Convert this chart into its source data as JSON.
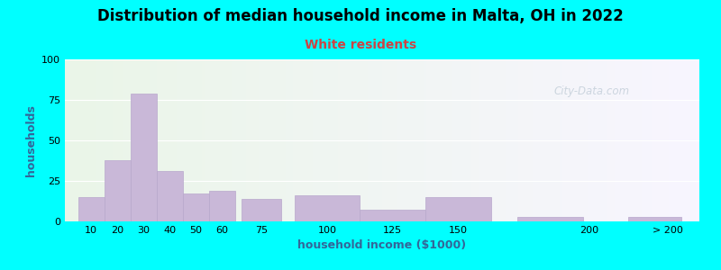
{
  "title": "Distribution of median household income in Malta, OH in 2022",
  "subtitle": "White residents",
  "xlabel": "household income ($1000)",
  "ylabel": "households",
  "background_color": "#00FFFF",
  "plot_bg_left": "#eaf5e8",
  "plot_bg_right": "#f8f5ff",
  "bar_color": "#c9b8d8",
  "bar_edge_color": "#b8a8cc",
  "title_fontsize": 12,
  "subtitle_fontsize": 10,
  "subtitle_color": "#cc4444",
  "ylabel_color": "#336699",
  "xlabel_color": "#336699",
  "ylim": [
    0,
    100
  ],
  "yticks": [
    0,
    25,
    50,
    75,
    100
  ],
  "xtick_labels": [
    "10",
    "20",
    "30",
    "40",
    "50",
    "60",
    "75",
    "100",
    "125",
    "150",
    "200",
    "> 200"
  ],
  "xtick_positions": [
    10,
    20,
    30,
    40,
    50,
    60,
    75,
    100,
    125,
    150,
    200,
    230
  ],
  "bar_lefts": [
    5,
    15,
    25,
    35,
    45,
    55,
    67.5,
    87.5,
    112.5,
    137.5,
    172.5,
    215
  ],
  "bar_widths": [
    10,
    10,
    10,
    10,
    10,
    10,
    15,
    25,
    25,
    25,
    25,
    20
  ],
  "bar_heights": [
    15,
    38,
    79,
    31,
    17,
    19,
    14,
    16,
    7,
    15,
    3,
    3
  ],
  "xlim": [
    0,
    242
  ],
  "watermark_text": "City-Data.com",
  "watermark_color": "#aabbc8",
  "watermark_alpha": 0.55
}
